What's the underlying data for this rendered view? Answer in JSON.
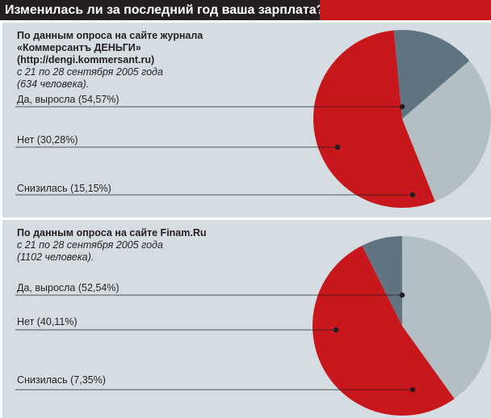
{
  "title": "Изменилась ли за последний год ваша зарплата?",
  "colors": {
    "title_bg": "#231f20",
    "accent": "#c8161d",
    "panel_bg": "#d6dde2",
    "yes": "#c8161d",
    "no": "#b2c0c6",
    "decreased": "#5f7480"
  },
  "panels": [
    {
      "head_bold": [
        "По данным опроса на сайте журнала",
        "«Коммерсантъ ДЕНЬГИ»",
        "(http://dengi.kommersant.ru)"
      ],
      "head_italic": [
        "с 21  по 28 сентября 2005 года",
        "(634 человека)."
      ]
    },
    {
      "head_bold": [
        "По данным опроса на сайте Finam.Ru"
      ],
      "head_italic": [
        "с 21  по 28 сентября 2005 года",
        "(1102 человека)."
      ]
    }
  ],
  "chart_data": [
    {
      "type": "pie",
      "labels": [
        "Да, выросла (54,57%)",
        "Нет (30,28%)",
        "Снизилась (15,15%)"
      ],
      "categories": [
        "Да, выросла",
        "Нет",
        "Снизилась"
      ],
      "values": [
        54.57,
        30.28,
        15.15
      ]
    },
    {
      "type": "pie",
      "labels": [
        "Да, выросла (52,54%)",
        "Нет (40,11%)",
        "Снизилась (7,35%)"
      ],
      "categories": [
        "Да, выросла",
        "Нет",
        "Снизилась"
      ],
      "values": [
        52.54,
        40.11,
        7.35
      ]
    }
  ]
}
